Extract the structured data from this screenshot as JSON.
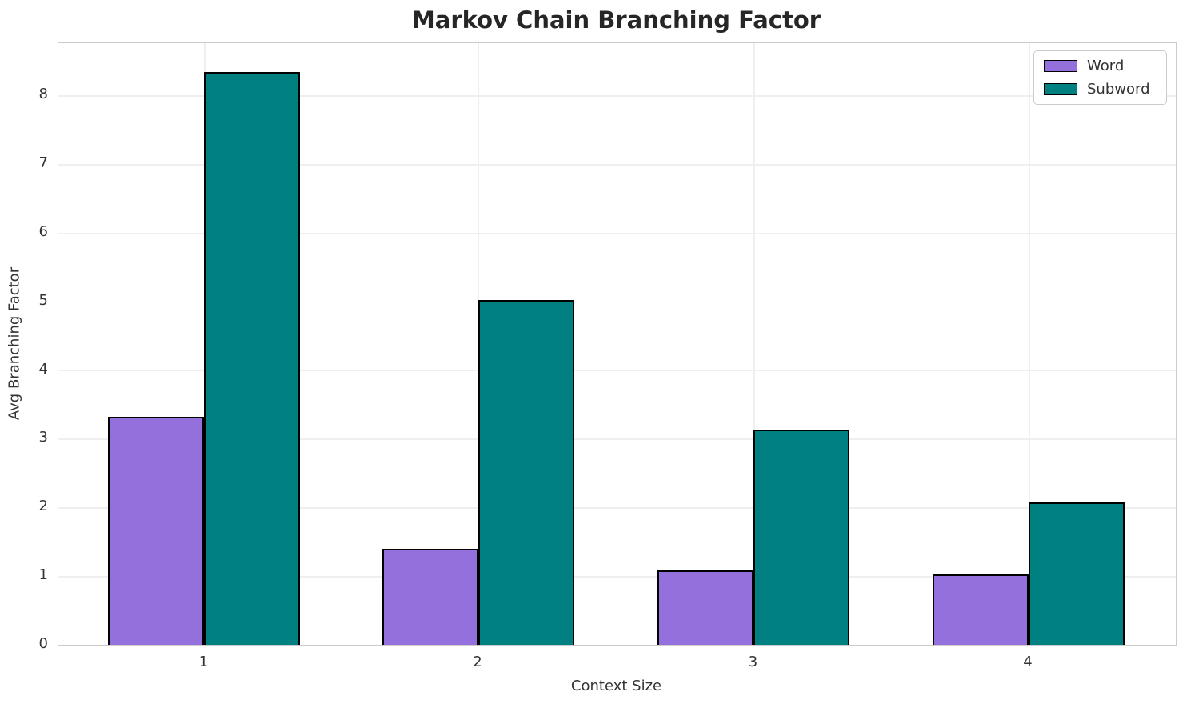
{
  "chart_data": {
    "type": "bar",
    "title": "Markov Chain Branching Factor",
    "xlabel": "Context Size",
    "ylabel": "Avg Branching Factor",
    "categories": [
      "1",
      "2",
      "3",
      "4"
    ],
    "series": [
      {
        "name": "Word",
        "color": "#9370DB",
        "values": [
          3.32,
          1.4,
          1.08,
          1.02
        ]
      },
      {
        "name": "Subword",
        "color": "#008080",
        "values": [
          8.34,
          5.02,
          3.13,
          2.07
        ]
      }
    ],
    "ylim": [
      0,
      8.76
    ],
    "yticks": [
      0,
      1,
      2,
      3,
      4,
      5,
      6,
      7,
      8
    ],
    "grid": true,
    "legend_position": "upper right",
    "bar_edge_color": "#000000",
    "layout": {
      "group_centers_frac": [
        0.1306,
        0.3758,
        0.6224,
        0.8683
      ],
      "bar_width_frac": 0.0859
    }
  }
}
